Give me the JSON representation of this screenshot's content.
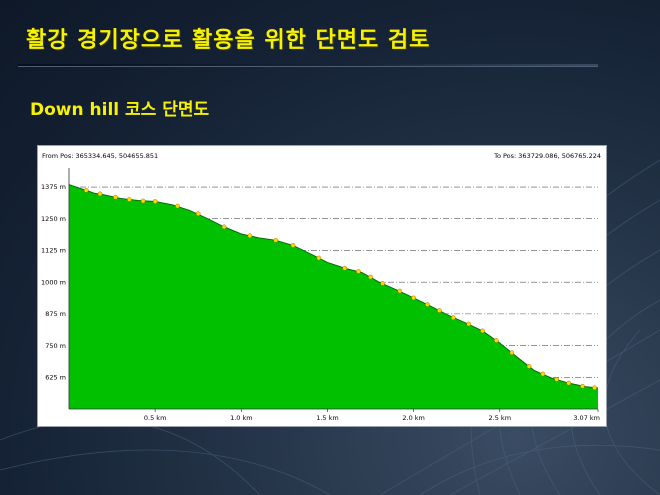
{
  "slide": {
    "title": "활강 경기장으로 활용을 위한 단면도 검토",
    "subtitle": "Down hill 코스 단면도"
  },
  "colors": {
    "title_text": "#f6f200",
    "background": "#1b2a3e",
    "profile_fill": "#00c000",
    "profile_line": "#006400",
    "marker_fill": "#ffd700",
    "grid": "#555555"
  },
  "chart_data": {
    "type": "area",
    "from_pos": "From Pos: 365334.645, 504655.851",
    "to_pos": "To Pos: 363729.086, 506765.224",
    "x_unit": "km",
    "y_unit": "m",
    "xlim": [
      0,
      3.07
    ],
    "ylim": [
      500,
      1450
    ],
    "x_ticks": [
      {
        "v": 0.5,
        "label": "0.5 km"
      },
      {
        "v": 1.0,
        "label": "1.0 km"
      },
      {
        "v": 1.5,
        "label": "1.5 km"
      },
      {
        "v": 2.0,
        "label": "2.0 km"
      },
      {
        "v": 2.5,
        "label": "2.5 km"
      },
      {
        "v": 3.07,
        "label": "3.07 km"
      }
    ],
    "y_ticks": [
      {
        "v": 625,
        "label": "625 m"
      },
      {
        "v": 750,
        "label": "750 m"
      },
      {
        "v": 875,
        "label": "875 m"
      },
      {
        "v": 1000,
        "label": "1000 m"
      },
      {
        "v": 1125,
        "label": "1125 m"
      },
      {
        "v": 1250,
        "label": "1250 m"
      },
      {
        "v": 1375,
        "label": "1375 m"
      }
    ],
    "grid": true,
    "profile": [
      [
        0,
        1385
      ],
      [
        0.05,
        1373
      ],
      [
        0.1,
        1362
      ],
      [
        0.15,
        1350
      ],
      [
        0.2,
        1345
      ],
      [
        0.3,
        1330
      ],
      [
        0.4,
        1322
      ],
      [
        0.5,
        1318
      ],
      [
        0.6,
        1305
      ],
      [
        0.7,
        1283
      ],
      [
        0.8,
        1252
      ],
      [
        0.9,
        1218
      ],
      [
        1.0,
        1190
      ],
      [
        1.1,
        1175
      ],
      [
        1.2,
        1165
      ],
      [
        1.3,
        1145
      ],
      [
        1.4,
        1112
      ],
      [
        1.5,
        1078
      ],
      [
        1.6,
        1055
      ],
      [
        1.7,
        1038
      ],
      [
        1.8,
        1000
      ],
      [
        1.9,
        970
      ],
      [
        2.0,
        938
      ],
      [
        2.1,
        905
      ],
      [
        2.2,
        870
      ],
      [
        2.3,
        840
      ],
      [
        2.4,
        808
      ],
      [
        2.5,
        760
      ],
      [
        2.6,
        705
      ],
      [
        2.7,
        652
      ],
      [
        2.8,
        622
      ],
      [
        2.9,
        602
      ],
      [
        3.0,
        588
      ],
      [
        3.07,
        583
      ]
    ],
    "markers": [
      [
        0.1,
        1362
      ],
      [
        0.18,
        1348
      ],
      [
        0.27,
        1335
      ],
      [
        0.35,
        1326
      ],
      [
        0.43,
        1320
      ],
      [
        0.5,
        1318
      ],
      [
        0.63,
        1300
      ],
      [
        0.75,
        1270
      ],
      [
        0.9,
        1218
      ],
      [
        1.05,
        1183
      ],
      [
        1.2,
        1165
      ],
      [
        1.3,
        1145
      ],
      [
        1.45,
        1095
      ],
      [
        1.6,
        1055
      ],
      [
        1.68,
        1042
      ],
      [
        1.75,
        1020
      ],
      [
        1.82,
        995
      ],
      [
        1.92,
        965
      ],
      [
        2.0,
        938
      ],
      [
        2.08,
        912
      ],
      [
        2.15,
        888
      ],
      [
        2.23,
        860
      ],
      [
        2.32,
        835
      ],
      [
        2.4,
        808
      ],
      [
        2.48,
        770
      ],
      [
        2.57,
        722
      ],
      [
        2.67,
        668
      ],
      [
        2.75,
        638
      ],
      [
        2.83,
        617
      ],
      [
        2.9,
        602
      ],
      [
        2.98,
        590
      ],
      [
        3.05,
        584
      ]
    ]
  }
}
